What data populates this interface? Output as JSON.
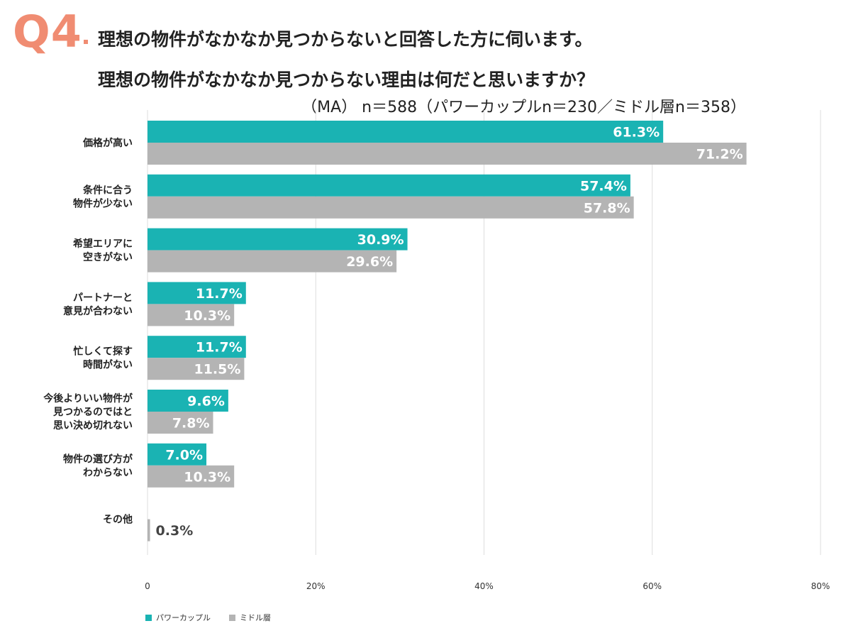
{
  "header": {
    "q_label": "Q4",
    "title_line1": "理想の物件がなかなか見つからないと回答した方に伺います。",
    "title_line2": "理想の物件がなかなか見つからない理由は何だと思いますか？",
    "subtitle": "（MA） n＝588（パワーカップルn＝230／ミドル層n＝358）"
  },
  "colors": {
    "power_couple": "#1ab3b3",
    "middle": "#b4b4b4",
    "accent": "#f08c72"
  },
  "chart_data": {
    "type": "bar",
    "orientation": "horizontal",
    "categories": [
      [
        "価格が高い"
      ],
      [
        "条件に合う",
        "物件が少ない"
      ],
      [
        "希望エリアに",
        "空きがない"
      ],
      [
        "パートナーと",
        "意見が合わない"
      ],
      [
        "忙しくて探す",
        "時間がない"
      ],
      [
        "今後よりいい物件が",
        "見つかるのではと",
        "思い決め切れない"
      ],
      [
        "物件の選び方が",
        "わからない"
      ],
      [
        "その他"
      ]
    ],
    "series": [
      {
        "name": "パワーカップル",
        "values": [
          61.3,
          57.4,
          30.9,
          11.7,
          11.7,
          9.6,
          7.0,
          null
        ],
        "labels": [
          "61.3%",
          "57.4%",
          "30.9%",
          "11.7%",
          "11.7%",
          "9.6%",
          "7.0%",
          ""
        ]
      },
      {
        "name": "ミドル層",
        "values": [
          71.2,
          57.8,
          29.6,
          10.3,
          11.5,
          7.8,
          10.3,
          0.3
        ],
        "labels": [
          "71.2%",
          "57.8%",
          "29.6%",
          "10.3%",
          "11.5%",
          "7.8%",
          "10.3%",
          "0.3%"
        ]
      }
    ],
    "xlim": [
      0,
      80
    ],
    "xticks": [
      0,
      20,
      40,
      60,
      80
    ],
    "xtick_labels": [
      "0",
      "20%",
      "40%",
      "60%",
      "80%"
    ],
    "grid": true,
    "legend_position": "bottom-left"
  }
}
